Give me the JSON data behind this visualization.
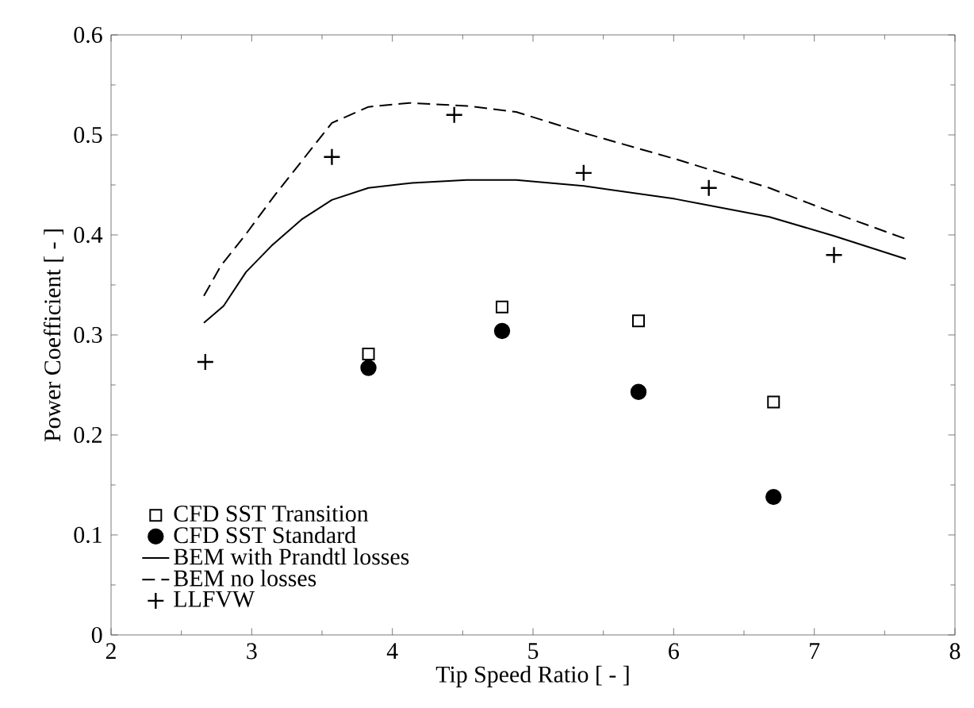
{
  "chart_data": {
    "type": "line",
    "xlabel": "Tip Speed Ratio [ - ]",
    "ylabel": "Power Coefficient [ - ]",
    "xlim": [
      2,
      8
    ],
    "ylim": [
      0,
      0.6
    ],
    "xticks": [
      2,
      3,
      4,
      5,
      6,
      7,
      8
    ],
    "yticks": [
      0,
      0.1,
      0.2,
      0.3,
      0.4,
      0.5,
      0.6
    ],
    "grid": false,
    "legend": "bottom left",
    "series": [
      {
        "name": "CFD SST Transition",
        "type": "scatter",
        "marker": "square",
        "color": "#000000",
        "x": [
          3.83,
          4.78,
          5.75,
          6.71
        ],
        "values": [
          0.281,
          0.328,
          0.314,
          0.233
        ]
      },
      {
        "name": "CFD SST Standard",
        "type": "scatter",
        "marker": "circle",
        "color": "#000000",
        "x": [
          3.83,
          4.78,
          5.75,
          6.71
        ],
        "values": [
          0.267,
          0.304,
          0.243,
          0.138
        ]
      },
      {
        "name": "BEM with Prandtl losses",
        "line_style": "solid",
        "color": "#000000",
        "x": [
          2.66,
          2.8,
          2.96,
          3.14,
          3.36,
          3.57,
          3.83,
          4.14,
          4.53,
          4.88,
          5.36,
          6.01,
          6.68,
          7.14,
          7.65
        ],
        "values": [
          0.312,
          0.329,
          0.363,
          0.389,
          0.416,
          0.435,
          0.447,
          0.452,
          0.455,
          0.455,
          0.449,
          0.436,
          0.418,
          0.399,
          0.376
        ]
      },
      {
        "name": "BEM no losses",
        "line_style": "dashed",
        "color": "#000000",
        "x": [
          2.66,
          2.78,
          2.96,
          3.16,
          3.57,
          3.83,
          4.12,
          4.53,
          4.88,
          5.36,
          6.01,
          6.68,
          7.14,
          7.65
        ],
        "values": [
          0.339,
          0.369,
          0.401,
          0.439,
          0.512,
          0.528,
          0.532,
          0.529,
          0.523,
          0.502,
          0.476,
          0.447,
          0.422,
          0.396
        ]
      },
      {
        "name": "LLFVW",
        "type": "scatter",
        "marker": "cross",
        "color": "#000000",
        "x": [
          2.67,
          3.57,
          4.44,
          5.36,
          6.25,
          7.14
        ],
        "values": [
          0.273,
          0.478,
          0.52,
          0.462,
          0.447,
          0.38
        ]
      }
    ]
  }
}
